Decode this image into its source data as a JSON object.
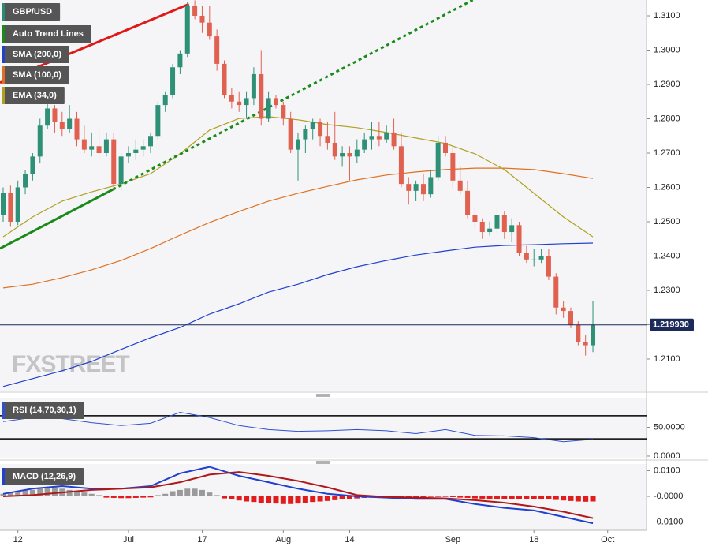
{
  "chart_data": [
    {
      "type": "candlestick",
      "name": "GBP/USD",
      "color": "#2a8a74",
      "up_color": "#2e9177",
      "down_color": "#e06150",
      "xlim": [
        -0.428,
        87.27
      ],
      "ylim": [
        1.2008,
        1.3146
      ],
      "yticks": [
        {
          "value": 1.31,
          "label": "1.3100"
        },
        {
          "value": 1.3,
          "label": "1.3000"
        },
        {
          "value": 1.29,
          "label": "1.2900"
        },
        {
          "value": 1.28,
          "label": "1.2800"
        },
        {
          "value": 1.27,
          "label": "1.2700"
        },
        {
          "value": 1.26,
          "label": "1.2600"
        },
        {
          "value": 1.25,
          "label": "1.2500"
        },
        {
          "value": 1.24,
          "label": "1.2400"
        },
        {
          "value": 1.23,
          "label": "1.2300"
        },
        {
          "value": 1.22,
          "label": "1.2200"
        },
        {
          "value": 1.21,
          "label": "1.2100"
        }
      ],
      "open": [
        1.252,
        1.2585,
        1.25,
        1.26,
        1.264,
        1.269,
        1.278,
        1.283,
        1.279,
        1.277,
        1.28,
        1.274,
        1.271,
        1.272,
        1.27,
        1.274,
        1.261,
        1.269,
        1.27,
        1.271,
        1.272,
        1.275,
        1.284,
        1.287,
        1.295,
        1.299,
        1.313,
        1.31,
        1.308,
        1.304,
        1.296,
        1.287,
        1.285,
        1.284,
        1.286,
        1.293,
        1.28,
        1.286,
        1.284,
        1.28,
        1.271,
        1.274,
        1.277,
        1.279,
        1.275,
        1.273,
        1.269,
        1.27,
        1.269,
        1.271,
        1.274,
        1.275,
        1.274,
        1.276,
        1.272,
        1.261,
        1.259,
        1.261,
        1.258,
        1.263,
        1.273,
        1.27,
        1.262,
        1.259,
        1.252,
        1.25,
        1.247,
        1.248,
        1.252,
        1.247,
        1.249,
        1.241,
        1.239,
        1.239,
        1.24,
        1.234,
        1.225,
        1.224,
        1.22,
        1.215,
        1.214
      ],
      "high": [
        1.26,
        1.2605,
        1.262,
        1.265,
        1.27,
        1.28,
        1.285,
        1.284,
        1.282,
        1.284,
        1.282,
        1.278,
        1.276,
        1.277,
        1.276,
        1.276,
        1.27,
        1.272,
        1.274,
        1.274,
        1.276,
        1.285,
        1.288,
        1.296,
        1.3,
        1.314,
        1.3145,
        1.313,
        1.313,
        1.306,
        1.297,
        1.289,
        1.288,
        1.288,
        1.295,
        1.3,
        1.288,
        1.287,
        1.285,
        1.282,
        1.276,
        1.278,
        1.28,
        1.28,
        1.279,
        1.282,
        1.272,
        1.272,
        1.274,
        1.276,
        1.279,
        1.279,
        1.278,
        1.28,
        1.276,
        1.263,
        1.262,
        1.264,
        1.265,
        1.275,
        1.275,
        1.272,
        1.266,
        1.262,
        1.254,
        1.251,
        1.25,
        1.254,
        1.253,
        1.251,
        1.25,
        1.243,
        1.242,
        1.242,
        1.242,
        1.235,
        1.227,
        1.225,
        1.221,
        1.217,
        1.227
      ],
      "low": [
        1.25,
        1.2485,
        1.249,
        1.258,
        1.262,
        1.267,
        1.277,
        1.276,
        1.275,
        1.276,
        1.272,
        1.27,
        1.269,
        1.268,
        1.269,
        1.259,
        1.259,
        1.267,
        1.268,
        1.269,
        1.27,
        1.274,
        1.282,
        1.286,
        1.293,
        1.298,
        1.309,
        1.305,
        1.303,
        1.294,
        1.286,
        1.283,
        1.282,
        1.28,
        1.284,
        1.278,
        1.279,
        1.283,
        1.278,
        1.27,
        1.262,
        1.27,
        1.274,
        1.272,
        1.271,
        1.268,
        1.266,
        1.262,
        1.267,
        1.27,
        1.271,
        1.272,
        1.273,
        1.271,
        1.26,
        1.255,
        1.256,
        1.256,
        1.257,
        1.262,
        1.269,
        1.26,
        1.258,
        1.251,
        1.248,
        1.245,
        1.246,
        1.246,
        1.245,
        1.244,
        1.24,
        1.238,
        1.237,
        1.238,
        1.233,
        1.223,
        1.222,
        1.219,
        1.214,
        1.211,
        1.212
      ],
      "close": [
        1.2585,
        1.25,
        1.26,
        1.264,
        1.269,
        1.278,
        1.283,
        1.279,
        1.277,
        1.28,
        1.274,
        1.271,
        1.272,
        1.27,
        1.274,
        1.261,
        1.269,
        1.27,
        1.271,
        1.272,
        1.275,
        1.284,
        1.287,
        1.295,
        1.299,
        1.313,
        1.31,
        1.308,
        1.304,
        1.296,
        1.287,
        1.285,
        1.284,
        1.286,
        1.293,
        1.28,
        1.286,
        1.284,
        1.28,
        1.271,
        1.274,
        1.277,
        1.279,
        1.275,
        1.273,
        1.269,
        1.27,
        1.269,
        1.271,
        1.274,
        1.275,
        1.274,
        1.276,
        1.272,
        1.261,
        1.259,
        1.261,
        1.258,
        1.263,
        1.273,
        1.27,
        1.262,
        1.259,
        1.252,
        1.25,
        1.247,
        1.248,
        1.252,
        1.247,
        1.249,
        1.241,
        1.239,
        1.239,
        1.24,
        1.234,
        1.225,
        1.224,
        1.22,
        1.215,
        1.214,
        1.21993
      ],
      "trend_lines": {
        "name": "Auto Trend Lines",
        "color": "#1a8a1a",
        "lines": [
          {
            "color": "#e01818",
            "style": "solid",
            "x": [
              -0.43,
              25.2
            ],
            "values": [
              1.2905,
              1.3134
            ]
          },
          {
            "color": "#1a8a1a",
            "style": "solid",
            "x": [
              -0.43,
              14.9
            ],
            "values": [
              1.2422,
              1.2594
            ]
          },
          {
            "color": "#1a8a1a",
            "style": "dotted",
            "x": [
              14.9,
              63.7
            ],
            "values": [
              1.2594,
              1.3146
            ]
          }
        ]
      },
      "overlays": [
        {
          "name": "SMA (200,0)",
          "color": "#2040d0",
          "x": [
            0,
            4,
            8,
            12,
            16,
            20,
            24,
            28,
            32,
            36,
            40,
            44,
            48,
            52,
            56,
            60,
            64,
            68,
            72,
            76,
            80
          ],
          "values": [
            1.202,
            1.2043,
            1.2066,
            1.2093,
            1.2128,
            1.2162,
            1.2192,
            1.2231,
            1.2261,
            1.2295,
            1.2318,
            1.2346,
            1.2369,
            1.2387,
            1.2403,
            1.2415,
            1.2426,
            1.2431,
            1.2433,
            1.2436,
            1.2438
          ]
        },
        {
          "name": "SMA (100,0)",
          "color": "#e07020",
          "x": [
            0,
            4,
            8,
            12,
            16,
            20,
            24,
            28,
            32,
            36,
            40,
            44,
            48,
            52,
            56,
            60,
            64,
            68,
            72,
            76,
            80
          ],
          "values": [
            1.2307,
            1.2318,
            1.2337,
            1.236,
            1.2387,
            1.2422,
            1.2461,
            1.2498,
            1.253,
            1.256,
            1.2583,
            1.2603,
            1.2622,
            1.2636,
            1.2645,
            1.2652,
            1.2656,
            1.2656,
            1.2652,
            1.264,
            1.2626
          ]
        },
        {
          "name": "EMA (34,0)",
          "color": "#b0a020",
          "x": [
            0,
            4,
            8,
            12,
            16,
            20,
            24,
            28,
            32,
            36,
            40,
            44,
            48,
            52,
            56,
            60,
            64,
            68,
            72,
            76,
            80
          ],
          "values": [
            1.2456,
            1.2514,
            1.256,
            1.2587,
            1.261,
            1.264,
            1.2698,
            1.2767,
            1.2801,
            1.2806,
            1.2797,
            1.2783,
            1.2774,
            1.276,
            1.2744,
            1.2728,
            1.2698,
            1.2652,
            1.2583,
            1.2514,
            1.2456
          ]
        }
      ],
      "last_price": {
        "value": 1.21993,
        "label": "1.219930"
      },
      "watermark": "FXSTREET"
    },
    {
      "type": "line",
      "xlim": [
        -0.428,
        87.27
      ],
      "ylim": [
        -2.8,
        100
      ],
      "yticks": [
        {
          "value": 50,
          "label": "50.0000"
        },
        {
          "value": 0,
          "label": "0.0000"
        }
      ],
      "levels": [
        70,
        30
      ],
      "series": [
        {
          "name": "RSI (14,70,30,1)",
          "color": "#3050d0",
          "x": [
            0,
            4,
            8,
            12,
            16,
            20,
            24,
            28,
            32,
            36,
            40,
            44,
            48,
            52,
            56,
            60,
            64,
            68,
            72,
            76,
            80
          ],
          "values": [
            60,
            67,
            65,
            58,
            53,
            57,
            76,
            67,
            53,
            46,
            43,
            44,
            46,
            44,
            39,
            46,
            36,
            35,
            32,
            25,
            29
          ]
        }
      ]
    },
    {
      "type": "macd",
      "name": "MACD (12,26,9)",
      "color": "#2040d0",
      "xlim": [
        -0.428,
        87.27
      ],
      "ylim": [
        -0.01323,
        0.01262
      ],
      "yticks": [
        {
          "value": 0.01,
          "label": "0.0100"
        },
        {
          "value": 0,
          "label": "-0.0000"
        },
        {
          "value": -0.01,
          "label": "-0.0100"
        }
      ],
      "xticks": [
        {
          "value": 2,
          "label": "12"
        },
        {
          "value": 17,
          "label": "Jul"
        },
        {
          "value": 27,
          "label": "17"
        },
        {
          "value": 38,
          "label": "Aug"
        },
        {
          "value": 47,
          "label": "14"
        },
        {
          "value": 61,
          "label": "Sep"
        },
        {
          "value": 72,
          "label": "18"
        },
        {
          "value": 82,
          "label": "Oct"
        }
      ],
      "histogram": {
        "positive_color": "#9a9a9a",
        "negative_color": "#e21b1b",
        "values": [
          0.001,
          0.0015,
          0.002,
          0.0025,
          0.0025,
          0.003,
          0.0035,
          0.0035,
          0.003,
          0.0025,
          0.002,
          0.0015,
          0.001,
          0.0005,
          -0.0005,
          -0.0006,
          -0.0007,
          -0.0007,
          -0.0006,
          -0.0005,
          -0.0004,
          0.0005,
          0.001,
          0.002,
          0.0025,
          0.003,
          0.003,
          0.0025,
          0.0015,
          0.0005,
          -0.0008,
          -0.0012,
          -0.0016,
          -0.002,
          -0.0022,
          -0.0025,
          -0.0027,
          -0.0028,
          -0.003,
          -0.003,
          -0.0028,
          -0.0025,
          -0.0022,
          -0.002,
          -0.0018,
          -0.0015,
          -0.0012,
          -0.001,
          -0.0008,
          -0.0006,
          -0.0005,
          -0.0004,
          -0.0003,
          -0.0003,
          -0.0003,
          -0.0004,
          -0.0004,
          -0.0003,
          -0.0002,
          -0.0002,
          -0.0002,
          -0.0003,
          -0.0005,
          -0.0006,
          -0.0008,
          -0.0009,
          -0.001,
          -0.001,
          -0.001,
          -0.0011,
          -0.0012,
          -0.0012,
          -0.0012,
          -0.0011,
          -0.0012,
          -0.0014,
          -0.0016,
          -0.0018,
          -0.002,
          -0.0021,
          -0.002
        ]
      },
      "series": [
        {
          "color": "#2040d0",
          "x": [
            0,
            4,
            8,
            12,
            16,
            20,
            24,
            28,
            32,
            36,
            40,
            44,
            48,
            52,
            56,
            60,
            64,
            68,
            72,
            76,
            80
          ],
          "values": [
            0.001,
            0.003,
            0.004,
            0.003,
            0.003,
            0.004,
            0.009,
            0.0115,
            0.008,
            0.0055,
            0.003,
            0.001,
            0.0,
            -0.0005,
            -0.001,
            -0.001,
            -0.003,
            -0.0045,
            -0.0055,
            -0.008,
            -0.0105
          ]
        },
        {
          "color": "#b01818",
          "x": [
            0,
            4,
            8,
            12,
            16,
            20,
            24,
            28,
            32,
            36,
            40,
            44,
            48,
            52,
            56,
            60,
            64,
            68,
            72,
            76,
            80
          ],
          "values": [
            0.0,
            0.0005,
            0.0015,
            0.0025,
            0.003,
            0.0035,
            0.0055,
            0.0085,
            0.0095,
            0.008,
            0.006,
            0.0035,
            0.0005,
            -0.0002,
            -0.0005,
            -0.0008,
            -0.0015,
            -0.0025,
            -0.004,
            -0.006,
            -0.0085
          ]
        }
      ]
    }
  ]
}
